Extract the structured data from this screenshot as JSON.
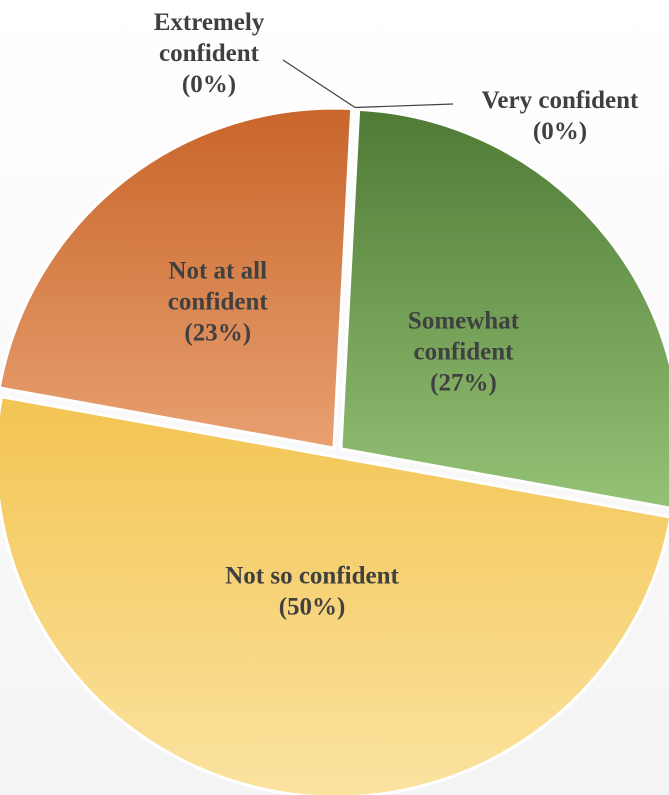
{
  "chart_data": {
    "type": "pie",
    "title": "",
    "slices": [
      {
        "name": "Extremely confident",
        "value": 0,
        "label_lines": [
          "Extremely",
          "confident",
          "(0%)"
        ],
        "label_position": "outside",
        "color_top": "#4a7a3a",
        "color_bottom": "#4a7a3a"
      },
      {
        "name": "Very confident",
        "value": 0,
        "label_lines": [
          "Very confident",
          "(0%)"
        ],
        "label_position": "outside",
        "color_top": "#5a8a42",
        "color_bottom": "#5a8a42"
      },
      {
        "name": "Somewhat confident",
        "value": 27,
        "label_lines": [
          "Somewhat",
          "confident",
          "(27%)"
        ],
        "label_position": "inside",
        "color_top": "#4e7a35",
        "color_bottom": "#95c275"
      },
      {
        "name": "Not so confident",
        "value": 50,
        "label_lines": [
          "Not so confident",
          "(50%)"
        ],
        "label_position": "inside",
        "color_top": "#f3c452",
        "color_bottom": "#fbe3a0"
      },
      {
        "name": "Not at all confident",
        "value": 23,
        "label_lines": [
          "Not at all",
          "confident",
          "(23%)"
        ],
        "label_position": "inside",
        "color_top": "#c8652a",
        "color_bottom": "#e8a070"
      }
    ],
    "legend": "none"
  }
}
